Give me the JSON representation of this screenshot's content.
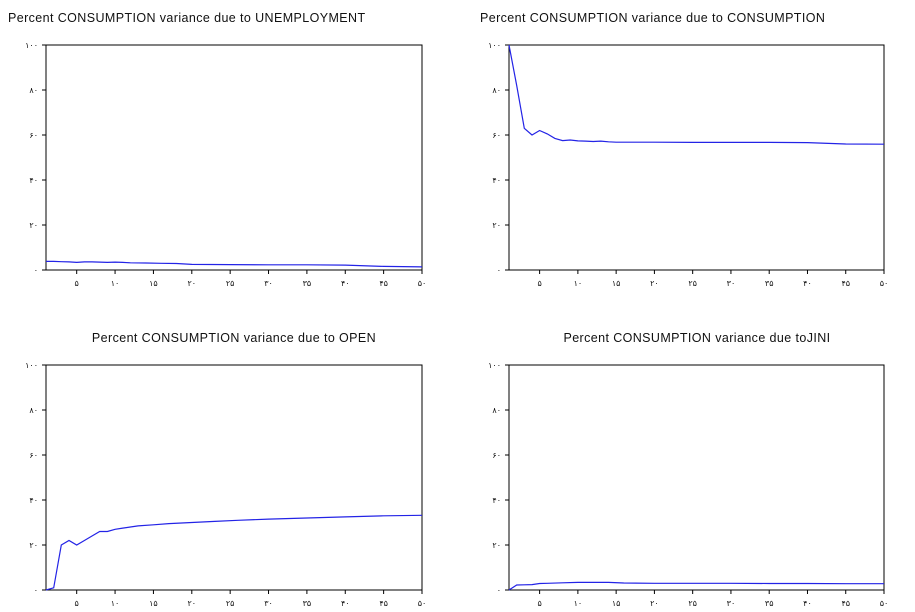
{
  "chart_data": [
    {
      "type": "line",
      "title": "Percent CONSUMPTION variance due to UNEMPLOYMENT",
      "xlim": [
        1,
        50
      ],
      "ylim": [
        0,
        100
      ],
      "yticks": [
        0,
        20,
        40,
        60,
        80,
        100
      ],
      "ytick_labels": [
        "۰",
        "۲۰",
        "۴۰",
        "۶۰",
        "۸۰",
        "۱۰۰"
      ],
      "xticks": [
        5,
        10,
        15,
        20,
        25,
        30,
        35,
        40,
        45,
        50
      ],
      "xtick_labels": [
        "۵",
        "۱۰",
        "۱۵",
        "۲۰",
        "۲۵",
        "۳۰",
        "۳۵",
        "۴۰",
        "۴۵",
        "۵۰"
      ],
      "series": [
        {
          "color": "#2323e6",
          "x": [
            1,
            2,
            3,
            4,
            5,
            6,
            7,
            8,
            9,
            10,
            11,
            12,
            14,
            16,
            18,
            20,
            25,
            30,
            35,
            40,
            45,
            50
          ],
          "y": [
            3.8,
            3.8,
            3.7,
            3.6,
            3.4,
            3.6,
            3.6,
            3.5,
            3.4,
            3.5,
            3.4,
            3.2,
            3.1,
            3.0,
            2.9,
            2.5,
            2.4,
            2.3,
            2.3,
            2.2,
            1.6,
            1.4
          ]
        }
      ]
    },
    {
      "type": "line",
      "title": "Percent CONSUMPTION variance due to CONSUMPTION",
      "xlim": [
        1,
        50
      ],
      "ylim": [
        0,
        100
      ],
      "yticks": [
        0,
        20,
        40,
        60,
        80,
        100
      ],
      "ytick_labels": [
        "۰",
        "۲۰",
        "۴۰",
        "۶۰",
        "۸۰",
        "۱۰۰"
      ],
      "xticks": [
        5,
        10,
        15,
        20,
        25,
        30,
        35,
        40,
        45,
        50
      ],
      "xtick_labels": [
        "۵",
        "۱۰",
        "۱۵",
        "۲۰",
        "۲۵",
        "۳۰",
        "۳۵",
        "۴۰",
        "۴۵",
        "۵۰"
      ],
      "series": [
        {
          "color": "#2323e6",
          "x": [
            1,
            2,
            3,
            4,
            5,
            6,
            7,
            8,
            9,
            10,
            11,
            12,
            13,
            14,
            15,
            20,
            25,
            30,
            35,
            40,
            45,
            50
          ],
          "y": [
            100,
            82,
            63,
            60,
            62,
            60.5,
            58.5,
            57.5,
            57.8,
            57.4,
            57.3,
            57.1,
            57.3,
            57.0,
            56.8,
            56.8,
            56.7,
            56.7,
            56.7,
            56.6,
            56.0,
            55.9
          ]
        }
      ]
    },
    {
      "type": "line",
      "title": "Percent CONSUMPTION variance due to OPEN",
      "xlim": [
        1,
        50
      ],
      "ylim": [
        0,
        100
      ],
      "yticks": [
        0,
        20,
        40,
        60,
        80,
        100
      ],
      "ytick_labels": [
        "۰",
        "۲۰",
        "۴۰",
        "۶۰",
        "۸۰",
        "۱۰۰"
      ],
      "xticks": [
        5,
        10,
        15,
        20,
        25,
        30,
        35,
        40,
        45,
        50
      ],
      "xtick_labels": [
        "۵",
        "۱۰",
        "۱۵",
        "۲۰",
        "۲۵",
        "۳۰",
        "۳۵",
        "۴۰",
        "۴۵",
        "۵۰"
      ],
      "series": [
        {
          "color": "#2323e6",
          "x": [
            1,
            2,
            3,
            4,
            5,
            6,
            7,
            8,
            9,
            10,
            11,
            12,
            13,
            15,
            17,
            20,
            23,
            26,
            30,
            35,
            40,
            45,
            50
          ],
          "y": [
            0,
            1,
            20,
            22,
            20,
            22,
            24,
            26,
            26,
            27,
            27.5,
            28,
            28.5,
            29,
            29.5,
            30,
            30.5,
            31,
            31.5,
            32,
            32.5,
            33,
            33.2
          ]
        }
      ]
    },
    {
      "type": "line",
      "title": "Percent CONSUMPTION variance due toJINI",
      "xlim": [
        1,
        50
      ],
      "ylim": [
        0,
        100
      ],
      "yticks": [
        0,
        20,
        40,
        60,
        80,
        100
      ],
      "ytick_labels": [
        "۰",
        "۲۰",
        "۴۰",
        "۶۰",
        "۸۰",
        "۱۰۰"
      ],
      "xticks": [
        5,
        10,
        15,
        20,
        25,
        30,
        35,
        40,
        45,
        50
      ],
      "xtick_labels": [
        "۵",
        "۱۰",
        "۱۵",
        "۲۰",
        "۲۵",
        "۳۰",
        "۳۵",
        "۴۰",
        "۴۵",
        "۵۰"
      ],
      "series": [
        {
          "color": "#2323e6",
          "x": [
            1,
            2,
            3,
            4,
            5,
            6,
            8,
            10,
            12,
            14,
            16,
            20,
            25,
            30,
            35,
            40,
            45,
            50
          ],
          "y": [
            0,
            2.2,
            2.3,
            2.4,
            2.9,
            3.0,
            3.2,
            3.4,
            3.4,
            3.4,
            3.1,
            3.0,
            3.0,
            3.0,
            2.9,
            2.9,
            2.8,
            2.8
          ]
        }
      ]
    }
  ]
}
